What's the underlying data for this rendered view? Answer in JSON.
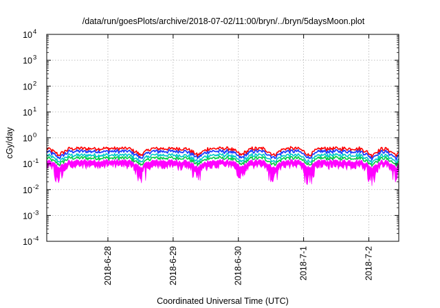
{
  "chart_data": {
    "type": "area",
    "title": "/data/run/goesPlots/archive/2018-07-02/11:00/bryn/../bryn/5daysMoon.plot",
    "xlabel": "Coordinated Universal Time (UTC)",
    "ylabel": "cGy/day",
    "yscale": "log",
    "ylim": [
      0.0001,
      10000
    ],
    "yticks": [
      {
        "value": 0.0001,
        "mant": "10",
        "exp": "-4"
      },
      {
        "value": 0.001,
        "mant": "10",
        "exp": "-3"
      },
      {
        "value": 0.01,
        "mant": "10",
        "exp": "-2"
      },
      {
        "value": 0.1,
        "mant": "10",
        "exp": "-1"
      },
      {
        "value": 1,
        "mant": "10",
        "exp": "0"
      },
      {
        "value": 10,
        "mant": "10",
        "exp": "1"
      },
      {
        "value": 100,
        "mant": "10",
        "exp": "2"
      },
      {
        "value": 1000,
        "mant": "10",
        "exp": "3"
      },
      {
        "value": 10000,
        "mant": "10",
        "exp": "4"
      }
    ],
    "xlim": [
      "2018-06-27T01:30",
      "2018-07-02T11:00"
    ],
    "xticks": [
      {
        "label": "2018-6-28",
        "x": "2018-06-28T00:00"
      },
      {
        "label": "2018-6-29",
        "x": "2018-06-29T00:00"
      },
      {
        "label": "2018-6-30",
        "x": "2018-06-30T00:00"
      },
      {
        "label": "2018-7-1",
        "x": "2018-07-01T00:00"
      },
      {
        "label": "2018-7-2",
        "x": "2018-07-02T00:00"
      }
    ],
    "grid": true,
    "legend": "none",
    "series": [
      {
        "color": "#ff0000",
        "level": 0.35,
        "style": "line",
        "offset": 0.1
      },
      {
        "color": "#1f3fff",
        "level": 0.3,
        "style": "line",
        "offset": 0.0
      },
      {
        "color": "#00c8c8",
        "level": 0.21,
        "style": "line",
        "offset": 0.02
      },
      {
        "color": "#00cc44",
        "level": 0.17,
        "style": "line",
        "offset": -0.02
      },
      {
        "color": "#ff00ff",
        "level": 0.13,
        "style": "band",
        "offset": 0.0
      }
    ],
    "dips": [
      "2018-06-27T06:00",
      "2018-06-28T12:00",
      "2018-06-29T09:00",
      "2018-06-30T01:00",
      "2018-06-30T13:00",
      "2018-07-01T02:00",
      "2018-07-02T01:00",
      "2018-07-02T10:00"
    ]
  }
}
